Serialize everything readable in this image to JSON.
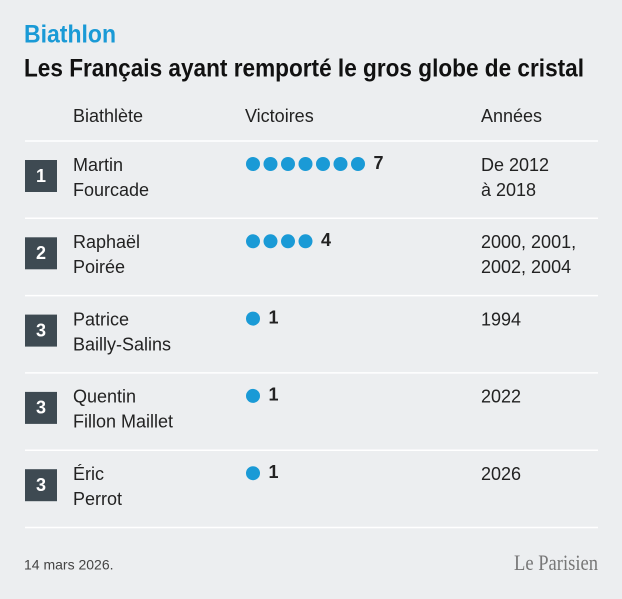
{
  "header": {
    "kicker": "Biathlon",
    "title": "Les Français ayant remporté le gros globe de cristal"
  },
  "table": {
    "columns": [
      "Biathlète",
      "Victoires",
      "Années"
    ],
    "rows": [
      {
        "rank": 1,
        "name": [
          "Martin",
          "Fourcade"
        ],
        "wins": 7,
        "years": [
          "De 2012",
          "à 2018"
        ]
      },
      {
        "rank": 2,
        "name": [
          "Raphaël",
          "Poirée"
        ],
        "wins": 4,
        "years": [
          "2000, 2001,",
          "2002, 2004"
        ]
      },
      {
        "rank": 3,
        "name": [
          "Patrice",
          "Bailly-Salins"
        ],
        "wins": 1,
        "years": [
          "1994"
        ]
      },
      {
        "rank": 3,
        "name": [
          "Quentin",
          "Fillon Maillet"
        ],
        "wins": 1,
        "years": [
          "2022"
        ]
      },
      {
        "rank": 3,
        "name": [
          "Éric",
          "Perrot"
        ],
        "wins": 1,
        "years": [
          "2026"
        ]
      }
    ]
  },
  "footer": {
    "date": "14 mars 2026.",
    "logo": "Le Parisien"
  }
}
